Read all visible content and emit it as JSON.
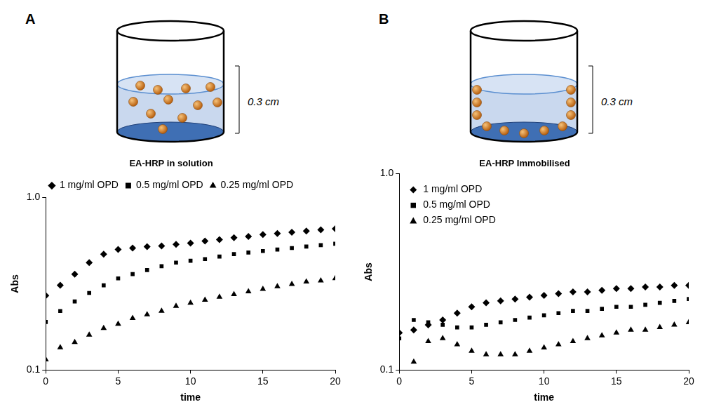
{
  "figure": {
    "panels": [
      {
        "letter": "A",
        "depth_label": "0.3 cm"
      },
      {
        "letter": "B",
        "depth_label": "0.3 cm"
      }
    ]
  },
  "chart_data": [
    {
      "type": "scatter",
      "title": "EA-HRP in solution",
      "x_label": "time",
      "y_label": "Abs",
      "x": [
        0,
        1,
        2,
        3,
        4,
        5,
        6,
        7,
        8,
        9,
        10,
        11,
        12,
        13,
        14,
        15,
        16,
        17,
        18,
        19,
        20
      ],
      "series": [
        {
          "name": "1 mg/ml OPD",
          "color": "#000000",
          "marker": "diamond",
          "values": [
            0.27,
            0.31,
            0.36,
            0.42,
            0.47,
            0.5,
            0.51,
            0.52,
            0.525,
            0.535,
            0.545,
            0.56,
            0.57,
            0.585,
            0.595,
            0.61,
            0.62,
            0.63,
            0.64,
            0.65,
            0.66
          ]
        },
        {
          "name": "0.5 mg/ml OPD",
          "color": "#000000",
          "marker": "square",
          "values": [
            0.19,
            0.22,
            0.25,
            0.28,
            0.31,
            0.34,
            0.36,
            0.38,
            0.4,
            0.42,
            0.43,
            0.44,
            0.455,
            0.47,
            0.48,
            0.49,
            0.5,
            0.51,
            0.52,
            0.53,
            0.54
          ]
        },
        {
          "name": "0.25 mg/ml OPD",
          "color": "#000000",
          "marker": "triangle",
          "values": [
            0.115,
            0.135,
            0.145,
            0.16,
            0.175,
            0.185,
            0.2,
            0.21,
            0.22,
            0.235,
            0.245,
            0.255,
            0.265,
            0.275,
            0.285,
            0.295,
            0.305,
            0.315,
            0.325,
            0.33,
            0.34
          ]
        }
      ],
      "xlim": [
        0,
        20
      ],
      "xticks": [
        0,
        5,
        10,
        15,
        20
      ],
      "ylim": [
        0.1,
        1
      ],
      "yticks": [
        0.1,
        {
          "value": 1,
          "label": "1.0"
        }
      ],
      "log": "y",
      "grid": false,
      "legend": "top"
    },
    {
      "type": "scatter",
      "title": "EA-HRP Immobilised",
      "x_label": "time",
      "y_label": "Abs",
      "x": [
        0,
        1,
        2,
        3,
        4,
        5,
        6,
        7,
        8,
        9,
        10,
        11,
        12,
        13,
        14,
        15,
        16,
        17,
        18,
        19,
        20
      ],
      "series": [
        {
          "name": "1 mg/ml OPD",
          "color": "#000000",
          "marker": "diamond",
          "values": [
            0.155,
            0.16,
            0.17,
            0.18,
            0.195,
            0.21,
            0.22,
            0.225,
            0.23,
            0.235,
            0.24,
            0.245,
            0.25,
            0.25,
            0.255,
            0.26,
            0.26,
            0.265,
            0.265,
            0.27,
            0.27
          ]
        },
        {
          "name": "0.5 mg/ml OPD",
          "color": "#000000",
          "marker": "square",
          "values": [
            0.145,
            0.18,
            0.175,
            0.17,
            0.165,
            0.165,
            0.17,
            0.175,
            0.18,
            0.185,
            0.19,
            0.195,
            0.2,
            0.2,
            0.205,
            0.21,
            0.21,
            0.215,
            0.22,
            0.225,
            0.23
          ]
        },
        {
          "name": "0.25 mg/ml OPD",
          "color": "#000000",
          "marker": "triangle",
          "values": [
            null,
            0.11,
            0.14,
            0.145,
            0.135,
            0.125,
            0.12,
            0.12,
            0.12,
            0.125,
            0.13,
            0.135,
            0.14,
            0.145,
            0.15,
            0.155,
            0.16,
            0.16,
            0.165,
            0.17,
            0.175
          ]
        }
      ],
      "xlim": [
        0,
        20
      ],
      "xticks": [
        0,
        5,
        10,
        15,
        20
      ],
      "ylim": [
        0.1,
        1
      ],
      "yticks": [
        0.1,
        {
          "value": 1,
          "label": "1.0"
        }
      ],
      "log": "y",
      "grid": false,
      "legend": "upper left"
    }
  ]
}
